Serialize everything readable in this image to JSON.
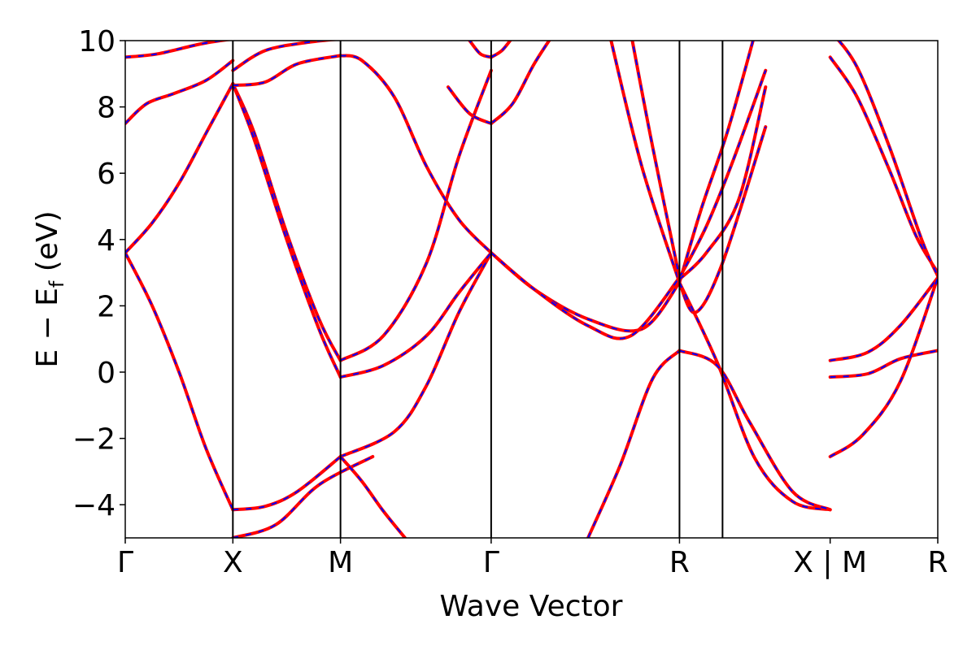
{
  "chart_data": {
    "type": "line",
    "title": "",
    "xlabel": "Wave Vector",
    "ylabel": "E − E",
    "ylabel_sub": "f",
    "ylabel_unit": " (eV)",
    "ylim": [
      -5,
      10
    ],
    "yticks": [
      -4,
      -2,
      0,
      2,
      4,
      6,
      8,
      10
    ],
    "ytick_labels": [
      "−4",
      "−2",
      "0",
      "2",
      "4",
      "6",
      "8",
      "10"
    ],
    "grid": false,
    "legend": "none",
    "kpath": {
      "positions": [
        0,
        1,
        2,
        3.4,
        5.15,
        6.55,
        7.55
      ],
      "labels": [
        "Γ",
        "X",
        "M",
        "Γ",
        "R",
        "X | M",
        "R"
      ],
      "segments": [
        [
          0,
          5.55
        ],
        [
          5.55,
          6.55
        ]
      ],
      "break_at": 5.55,
      "vlines": [
        1,
        2,
        3.4,
        5.15,
        5.55
      ]
    },
    "series_style": {
      "solid_color": "#ff0000",
      "dashed_color": "#0000ff"
    },
    "bands": [
      {
        "x": [
          0,
          0.25,
          0.5,
          0.75,
          1
        ],
        "y": [
          3.6,
          2,
          0,
          -2.3,
          -4.15
        ]
      },
      {
        "x": [
          1,
          1.3,
          1.6,
          2
        ],
        "y": [
          -4.15,
          -4.05,
          -3.6,
          -2.55
        ]
      },
      {
        "x": [
          0,
          0.25,
          0.5,
          0.75,
          1
        ],
        "y": [
          3.6,
          4.5,
          5.7,
          7.2,
          8.7
        ]
      },
      {
        "x": [
          0,
          0.2,
          0.45,
          0.75,
          1
        ],
        "y": [
          7.5,
          8.1,
          8.4,
          8.8,
          9.4
        ]
      },
      {
        "x": [
          0,
          0.3,
          0.7,
          1
        ],
        "y": [
          9.5,
          9.6,
          9.9,
          10.05
        ]
      },
      {
        "x": [
          1,
          1.2,
          1.5,
          1.8,
          2
        ],
        "y": [
          8.7,
          7.2,
          4.2,
          1.6,
          0.35
        ]
      },
      {
        "x": [
          1,
          1.2,
          1.5,
          1.8,
          2
        ],
        "y": [
          8.7,
          7,
          4,
          1.3,
          -0.15
        ]
      },
      {
        "x": [
          1,
          1.3,
          1.6,
          2
        ],
        "y": [
          8.65,
          8.75,
          9.3,
          9.55
        ]
      },
      {
        "x": [
          1,
          1.3,
          1.7,
          2
        ],
        "y": [
          9.1,
          9.7,
          9.95,
          10.05
        ]
      },
      {
        "x": [
          1,
          1.4,
          1.8,
          2.3
        ],
        "y": [
          -5,
          -4.6,
          -3.4,
          -2.55
        ]
      },
      {
        "x": [
          2,
          2.5,
          2.8,
          3.1,
          3.4
        ],
        "y": [
          -2.55,
          -1.8,
          -0.4,
          1.8,
          3.6
        ]
      },
      {
        "x": [
          2,
          2.2,
          2.4,
          2.6
        ],
        "y": [
          -2.55,
          -3.3,
          -4.2,
          -5
        ]
      },
      {
        "x": [
          2,
          2.4,
          2.8,
          3.1,
          3.4
        ],
        "y": [
          0.35,
          1.1,
          3.3,
          6.5,
          9.1
        ]
      },
      {
        "x": [
          2,
          2.4,
          2.8,
          3.1,
          3.4
        ],
        "y": [
          -0.15,
          0.2,
          1.1,
          2.4,
          3.6
        ]
      },
      {
        "x": [
          2,
          2.2,
          2.5,
          2.8,
          3.1,
          3.4
        ],
        "y": [
          9.55,
          9.4,
          8.3,
          6.2,
          4.6,
          3.6
        ]
      },
      {
        "x": [
          3.4,
          3.8,
          4.3,
          4.8,
          5.15
        ],
        "y": [
          3.6,
          2.5,
          1.6,
          1.3,
          2.7
        ]
      },
      {
        "x": [
          3.4,
          3.8,
          4.3,
          4.7,
          5.15
        ],
        "y": [
          3.6,
          2.5,
          1.4,
          1.1,
          2.85
        ]
      },
      {
        "x": [
          3.4,
          3.6,
          3.8,
          4.0
        ],
        "y": [
          7.5,
          8.1,
          9.3,
          10.3
        ]
      },
      {
        "x": [
          3.4,
          3.2,
          3.0
        ],
        "y": [
          7.5,
          7.8,
          8.6
        ]
      },
      {
        "x": [
          3.4,
          3.3,
          3.2
        ],
        "y": [
          9.5,
          9.6,
          10.0
        ]
      },
      {
        "x": [
          3.4,
          3.5,
          3.6
        ],
        "y": [
          9.5,
          9.7,
          10.1
        ]
      },
      {
        "x": [
          4.3,
          4.6,
          4.9,
          5.15
        ],
        "y": [
          -5,
          -2.8,
          -0.2,
          0.65
        ]
      },
      {
        "x": [
          4.5,
          4.8,
          5.15
        ],
        "y": [
          10.2,
          6.2,
          2.7
        ]
      },
      {
        "x": [
          4.7,
          4.9,
          5.15
        ],
        "y": [
          10.2,
          6.8,
          2.85
        ]
      },
      {
        "x": [
          5.15,
          5.35,
          5.6,
          5.85
        ],
        "y": [
          2.7,
          4.9,
          7.3,
          10.2
        ]
      },
      {
        "x": [
          5.15,
          5.4,
          5.65,
          5.95
        ],
        "y": [
          2.85,
          4.4,
          6.4,
          9.1
        ]
      },
      {
        "x": [
          5.15,
          5.4,
          5.7,
          5.95
        ],
        "y": [
          2.8,
          3.6,
          5.2,
          8.6
        ]
      },
      {
        "x": [
          5.15,
          5.3,
          5.55,
          5.95
        ],
        "y": [
          2.7,
          1.8,
          3.3,
          7.4
        ]
      },
      {
        "x": [
          5.15,
          5.5,
          5.85,
          6.2,
          6.55
        ],
        "y": [
          2.7,
          0.3,
          -2.6,
          -3.9,
          -4.15
        ]
      },
      {
        "x": [
          5.15,
          5.5,
          5.8,
          6.2,
          6.55
        ],
        "y": [
          0.65,
          0.2,
          -1.5,
          -3.6,
          -4.15
        ]
      },
      {
        "x": [
          6.55,
          6.8,
          7.1,
          7.35,
          7.55
        ],
        "y": [
          9.5,
          8.3,
          6.1,
          4.1,
          3.0
        ]
      },
      {
        "x": [
          6.55,
          6.8,
          7.1,
          7.4,
          7.55
        ],
        "y": [
          10.3,
          9.2,
          6.8,
          4.0,
          2.9
        ]
      },
      {
        "x": [
          6.55,
          6.9,
          7.2,
          7.55
        ],
        "y": [
          0.35,
          0.6,
          1.4,
          2.85
        ]
      },
      {
        "x": [
          6.55,
          6.9,
          7.2,
          7.55
        ],
        "y": [
          -0.15,
          -0.05,
          0.4,
          0.65
        ]
      },
      {
        "x": [
          6.55,
          6.85,
          7.2,
          7.55
        ],
        "y": [
          -2.55,
          -1.9,
          -0.3,
          2.85
        ]
      }
    ]
  }
}
